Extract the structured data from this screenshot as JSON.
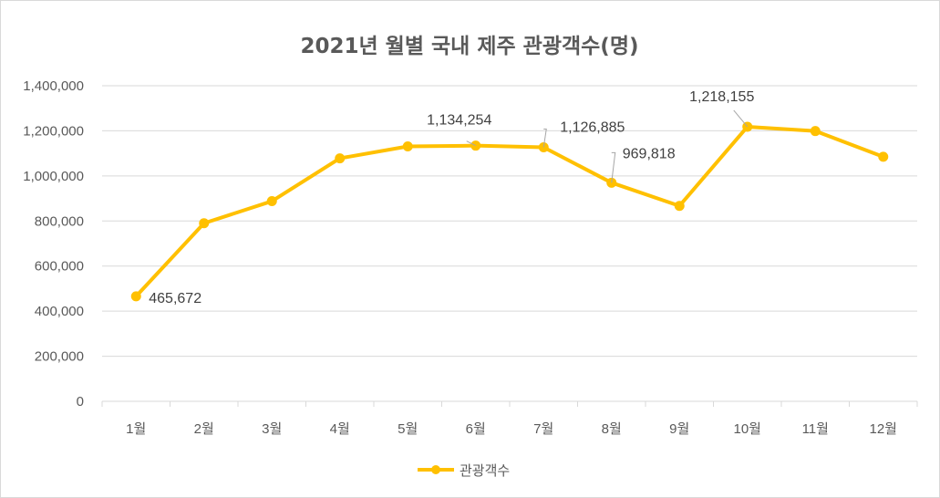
{
  "chart_data": {
    "type": "line",
    "title": "2021년 월별 국내 제주 관광객수(명)",
    "categories": [
      "1월",
      "2월",
      "3월",
      "4월",
      "5월",
      "6월",
      "7월",
      "8월",
      "9월",
      "10월",
      "11월",
      "12월"
    ],
    "series": [
      {
        "name": "관광객수",
        "color": "#ffc000",
        "values": [
          465672,
          790000,
          888000,
          1078000,
          1131000,
          1134254,
          1126885,
          969818,
          867000,
          1218155,
          1199000,
          1085000
        ]
      }
    ],
    "ylim": [
      0,
      1400000
    ],
    "yticks": [
      0,
      200000,
      400000,
      600000,
      800000,
      1000000,
      1200000,
      1400000
    ],
    "ytick_labels": [
      "0",
      "200,000",
      "400,000",
      "600,000",
      "800,000",
      "1,000,000",
      "1,200,000",
      "1,400,000"
    ],
    "data_labels": [
      {
        "index": 0,
        "text": "465,672"
      },
      {
        "index": 5,
        "text": "1,134,254"
      },
      {
        "index": 6,
        "text": "1,126,885"
      },
      {
        "index": 7,
        "text": "969,818"
      },
      {
        "index": 9,
        "text": "1,218,155"
      }
    ],
    "grid": true,
    "legend": "bottom-center",
    "xlabel": "",
    "ylabel": ""
  }
}
